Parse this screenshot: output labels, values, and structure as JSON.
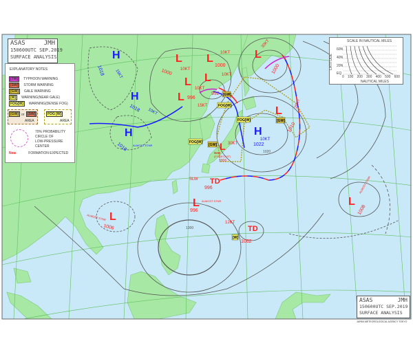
{
  "header": {
    "agency": "ASAS",
    "issuer": "JMH",
    "time": "150600UTC SEP.2019",
    "title": "SURFACE ANALYSIS"
  },
  "footer": {
    "agency": "ASAS",
    "issuer": "JMH",
    "time": "150600UTC SEP.2019",
    "title": "SURFACE ANALYSIS",
    "credit": "JAPAN METEOROLOGICAL AGENCY TOKYO"
  },
  "notes": {
    "title": "EXPLANATORY NOTES",
    "items": [
      {
        "tag": "[TW]",
        "label": "TYPHOON WARNING",
        "color": "#d040d0"
      },
      {
        "tag": "[SW]",
        "label": "STORM WARNING",
        "color": "#e07050"
      },
      {
        "tag": "[GW]",
        "label": "GALE WARNING",
        "color": "#d8c040"
      },
      {
        "tag": "[W]",
        "label": "WARNING(NEAR GALE)",
        "color": "#f0f060"
      },
      {
        "tag": "FOG[W]",
        "label": "WARNING(DENSE FOG)",
        "color": "#f0f060"
      }
    ],
    "area1": {
      "tag1": "[GW]",
      "or": "or",
      "tag2": "[SW]",
      "label": "AREA"
    },
    "area2": {
      "tag": "FOG [W]",
      "label": "AREA"
    },
    "probability": [
      "70% PROBABILITY",
      "CIRCLE OF",
      "LOW-PRESSURE CENTER"
    ],
    "new": {
      "tag": "New",
      "label": "FORMATION EXPECTED"
    }
  },
  "scale": {
    "title": "SCALE IN NAUTICAL MILES",
    "ylabel": "LATITUDE",
    "lat_ticks": [
      "60N",
      "40N",
      "20N",
      "EQ"
    ],
    "nm_ticks": [
      "0",
      "100",
      "200",
      "300",
      "400",
      "500",
      "600"
    ],
    "xlabel": "NAUTICAL MILES"
  },
  "colors": {
    "land": "#a6e8a4",
    "sea": "#c9e9f8",
    "high": "#1a1aff",
    "low": "#ff2020",
    "grid": "#60c060",
    "isobar": "#555555"
  },
  "systems": [
    {
      "type": "H",
      "pressure": "1018",
      "motion": "15KT"
    },
    {
      "type": "H",
      "pressure": "1018",
      "motion": "10KT"
    },
    {
      "type": "H",
      "pressure": "1018",
      "motion": "ALMOST STNR"
    },
    {
      "type": "L",
      "pressure": "1000",
      "motion": "10KT"
    },
    {
      "type": "L",
      "pressure": "1000",
      "motion": "10KT"
    },
    {
      "type": "L",
      "pressure": "",
      "motion": "10KT"
    },
    {
      "type": "L",
      "pressure": "",
      "motion": "10KT"
    },
    {
      "type": "L",
      "pressure": "996",
      "motion": "15KT"
    },
    {
      "type": "L",
      "pressure": "992",
      "motion": ""
    },
    {
      "type": "L",
      "pressure": "1000",
      "motion": "30KT"
    },
    {
      "type": "L",
      "pressure": "1010",
      "motion": "20KT"
    },
    {
      "type": "H",
      "pressure": "1022",
      "motion": "10KT"
    },
    {
      "type": "L",
      "pressure": "1006",
      "motion": "30KT",
      "new": "New",
      "note": "(FORECAST)"
    },
    {
      "type": "TD",
      "pressure": "996",
      "motion": "SLW"
    },
    {
      "type": "L",
      "pressure": "996",
      "motion": "ALMOST STNR"
    },
    {
      "type": "L",
      "pressure": "1006",
      "motion": "ALMOST STNR"
    },
    {
      "type": "TD",
      "pressure": "1002",
      "motion": "12KT"
    },
    {
      "type": "L",
      "pressure": "1008",
      "motion": "ALMOST STNR"
    }
  ],
  "warnings": {
    "gw": "[GW]",
    "fog": "FOG[W]",
    "w": "[W]"
  },
  "isobar_labels": [
    "1000",
    "1020"
  ]
}
